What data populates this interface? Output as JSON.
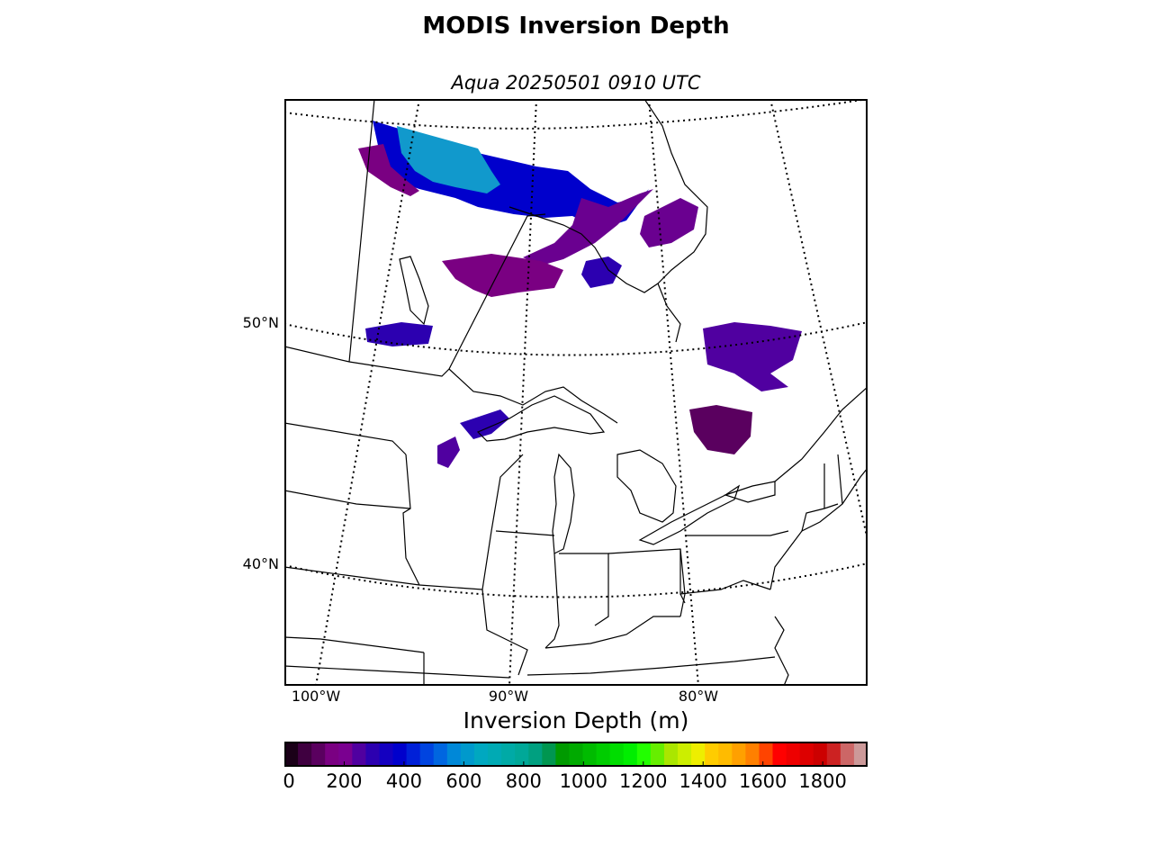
{
  "title": "MODIS Inversion Depth",
  "subtitle": "Aqua 20250501 0910 UTC",
  "lat_labels": [
    {
      "text": "50°N",
      "value": 50
    },
    {
      "text": "40°N",
      "value": 40
    }
  ],
  "lon_labels": [
    {
      "text": "100°W",
      "value": -100
    },
    {
      "text": "90°W",
      "value": -90
    },
    {
      "text": "80°W",
      "value": -80
    }
  ],
  "colorbar": {
    "label": "Inversion Depth (m)",
    "range": [
      0,
      1950
    ],
    "step": 50,
    "ticks": [
      "0",
      "200",
      "400",
      "600",
      "800",
      "1000",
      "1200",
      "1400",
      "1600",
      "1800"
    ],
    "colors": [
      "#1a0018",
      "#3f0040",
      "#5a005f",
      "#7a0082",
      "#7a0090",
      "#5000a0",
      "#2c00b0",
      "#1400c0",
      "#0000cc",
      "#0020d8",
      "#0044e0",
      "#0066e0",
      "#0088d8",
      "#0099cc",
      "#00a8c0",
      "#00aab4",
      "#00aaa6",
      "#00a898",
      "#00a080",
      "#009650",
      "#009a00",
      "#00aa00",
      "#00bb00",
      "#00cc00",
      "#00dd00",
      "#00ee00",
      "#22ff00",
      "#66ee00",
      "#aae600",
      "#ccee00",
      "#eeee00",
      "#ffcc00",
      "#ffbb00",
      "#ffa000",
      "#ff8000",
      "#ff4400",
      "#ff0000",
      "#ee0000",
      "#dd0000",
      "#cc0000",
      "#cc2222",
      "#cc6666",
      "#cc9999"
    ]
  },
  "map": {
    "projection": "lambert-conformal",
    "extent_description": "Central Canada and Great Lakes"
  }
}
